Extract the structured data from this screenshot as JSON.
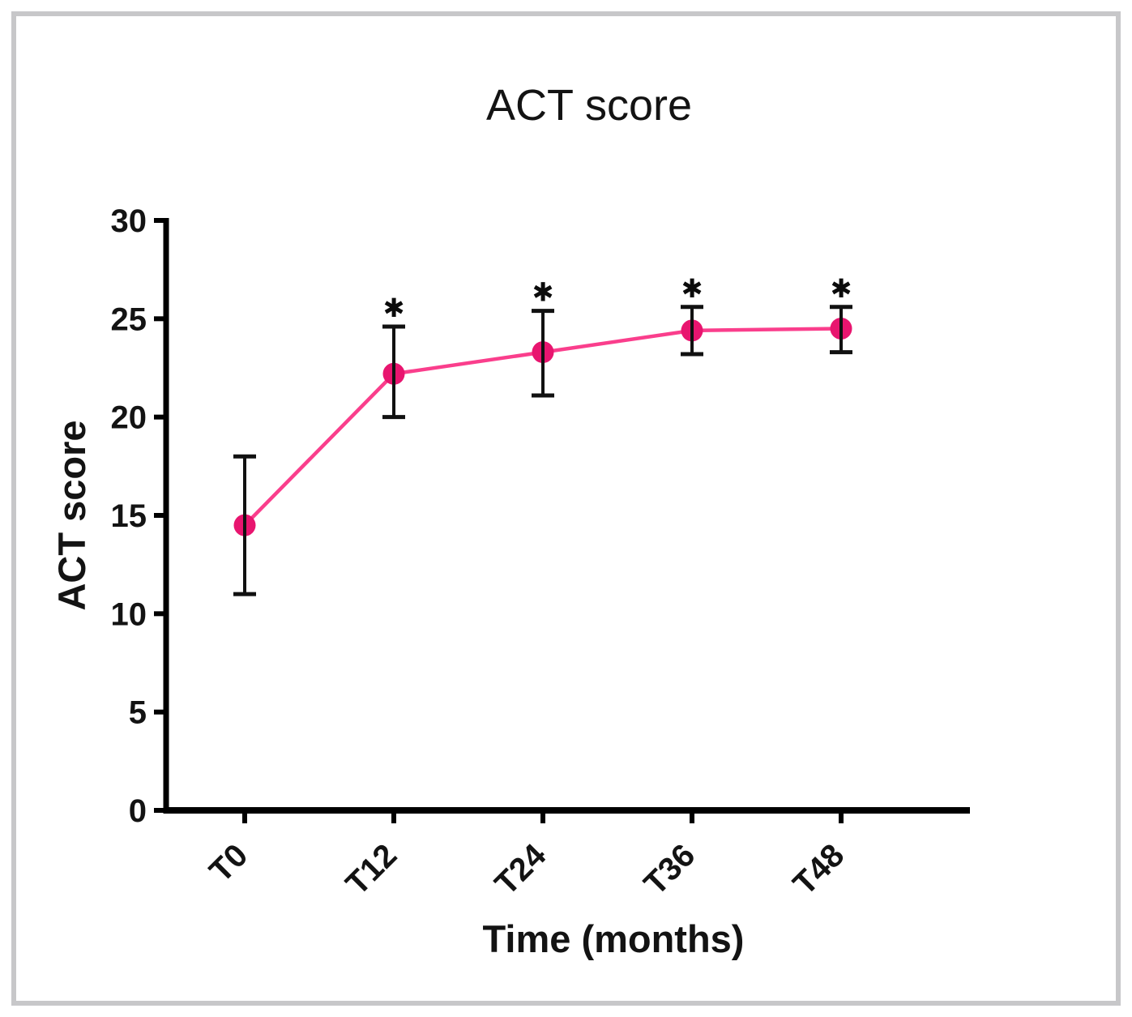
{
  "chart_data": {
    "type": "line",
    "title": "ACT score",
    "xlabel": "Time (months)",
    "ylabel": "ACT score",
    "categories": [
      "T0",
      "T12",
      "T24",
      "T36",
      "T48"
    ],
    "series": [
      {
        "name": "ACT score",
        "values": [
          14.5,
          22.2,
          23.3,
          24.4,
          24.5
        ],
        "error_low": [
          11.0,
          20.0,
          21.1,
          23.2,
          23.3
        ],
        "error_high": [
          18.0,
          24.6,
          25.4,
          25.6,
          25.6
        ],
        "significant": [
          false,
          true,
          true,
          true,
          true
        ]
      }
    ],
    "ylim": [
      0,
      30
    ],
    "yticks": [
      0,
      5,
      10,
      15,
      20,
      25,
      30
    ],
    "legend": "none",
    "grid": false,
    "significance_marker": "✱",
    "colors": {
      "marker": "#e8156f",
      "line": "#fa3e8c",
      "error_bar": "#111111",
      "axis": "#000000",
      "frame_border": "#c7c7c9"
    }
  }
}
